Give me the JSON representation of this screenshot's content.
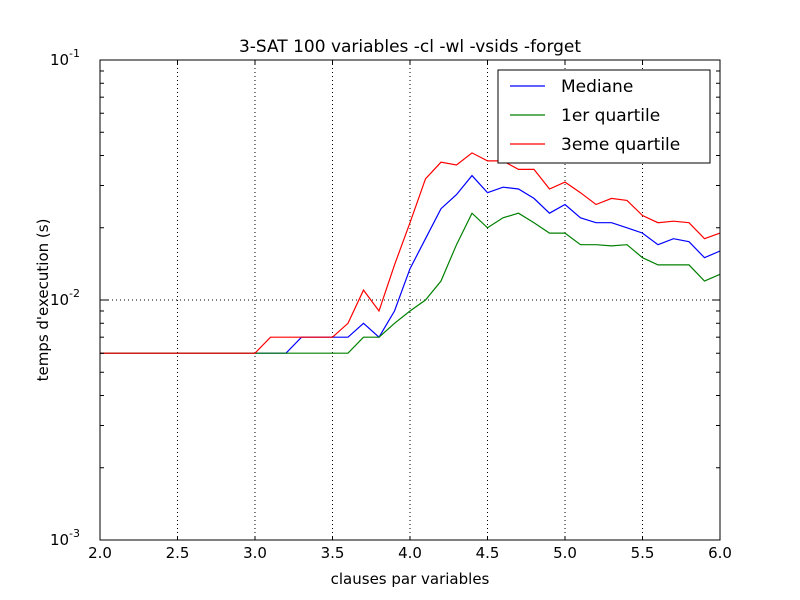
{
  "chart_data": {
    "type": "line",
    "title": "3-SAT 100 variables -cl -wl -vsids -forget",
    "xlabel": "clauses par variables",
    "ylabel": "temps d'execution (s)",
    "xlim": [
      2.0,
      6.0
    ],
    "ylim": [
      0.001,
      0.1
    ],
    "yscale": "log",
    "grid": true,
    "legend_position": "top-right",
    "x_ticks": [
      "2.0",
      "2.5",
      "3.0",
      "3.5",
      "4.0",
      "4.5",
      "5.0",
      "5.5",
      "6.0"
    ],
    "y_ticks": [
      {
        "value": 0.001,
        "base": "10",
        "exp": "-3"
      },
      {
        "value": 0.01,
        "base": "10",
        "exp": "-2"
      },
      {
        "value": 0.1,
        "base": "10",
        "exp": "-1"
      }
    ],
    "x": [
      2.0,
      2.1,
      2.2,
      2.3,
      2.4,
      2.5,
      2.6,
      2.7,
      2.8,
      2.9,
      3.0,
      3.1,
      3.2,
      3.3,
      3.4,
      3.5,
      3.6,
      3.7,
      3.8,
      3.9,
      4.0,
      4.1,
      4.2,
      4.3,
      4.4,
      4.5,
      4.6,
      4.7,
      4.8,
      4.9,
      5.0,
      5.1,
      5.2,
      5.3,
      5.4,
      5.5,
      5.6,
      5.7,
      5.8,
      5.9,
      6.0
    ],
    "series": [
      {
        "name": "Mediane",
        "color": "#0000ff",
        "values": [
          0.006,
          0.006,
          0.006,
          0.006,
          0.006,
          0.006,
          0.006,
          0.006,
          0.006,
          0.006,
          0.006,
          0.006,
          0.006,
          0.007,
          0.007,
          0.007,
          0.007,
          0.008,
          0.007,
          0.009,
          0.0135,
          0.018,
          0.024,
          0.0275,
          0.033,
          0.028,
          0.0295,
          0.029,
          0.0265,
          0.023,
          0.025,
          0.022,
          0.021,
          0.021,
          0.02,
          0.019,
          0.017,
          0.018,
          0.0175,
          0.015,
          0.016
        ]
      },
      {
        "name": "1er quartile",
        "color": "#008000",
        "values": [
          0.006,
          0.006,
          0.006,
          0.006,
          0.006,
          0.006,
          0.006,
          0.006,
          0.006,
          0.006,
          0.006,
          0.006,
          0.006,
          0.006,
          0.006,
          0.006,
          0.006,
          0.007,
          0.007,
          0.008,
          0.009,
          0.01,
          0.012,
          0.017,
          0.023,
          0.02,
          0.022,
          0.023,
          0.021,
          0.019,
          0.019,
          0.017,
          0.017,
          0.0168,
          0.017,
          0.015,
          0.014,
          0.014,
          0.014,
          0.012,
          0.0128
        ]
      },
      {
        "name": "3eme quartile",
        "color": "#ff0000",
        "values": [
          0.006,
          0.006,
          0.006,
          0.006,
          0.006,
          0.006,
          0.006,
          0.006,
          0.006,
          0.006,
          0.006,
          0.007,
          0.007,
          0.007,
          0.007,
          0.007,
          0.008,
          0.011,
          0.009,
          0.014,
          0.021,
          0.032,
          0.0375,
          0.0365,
          0.041,
          0.038,
          0.038,
          0.035,
          0.035,
          0.029,
          0.031,
          0.028,
          0.025,
          0.0265,
          0.026,
          0.0225,
          0.021,
          0.0213,
          0.021,
          0.018,
          0.019
        ]
      }
    ]
  }
}
